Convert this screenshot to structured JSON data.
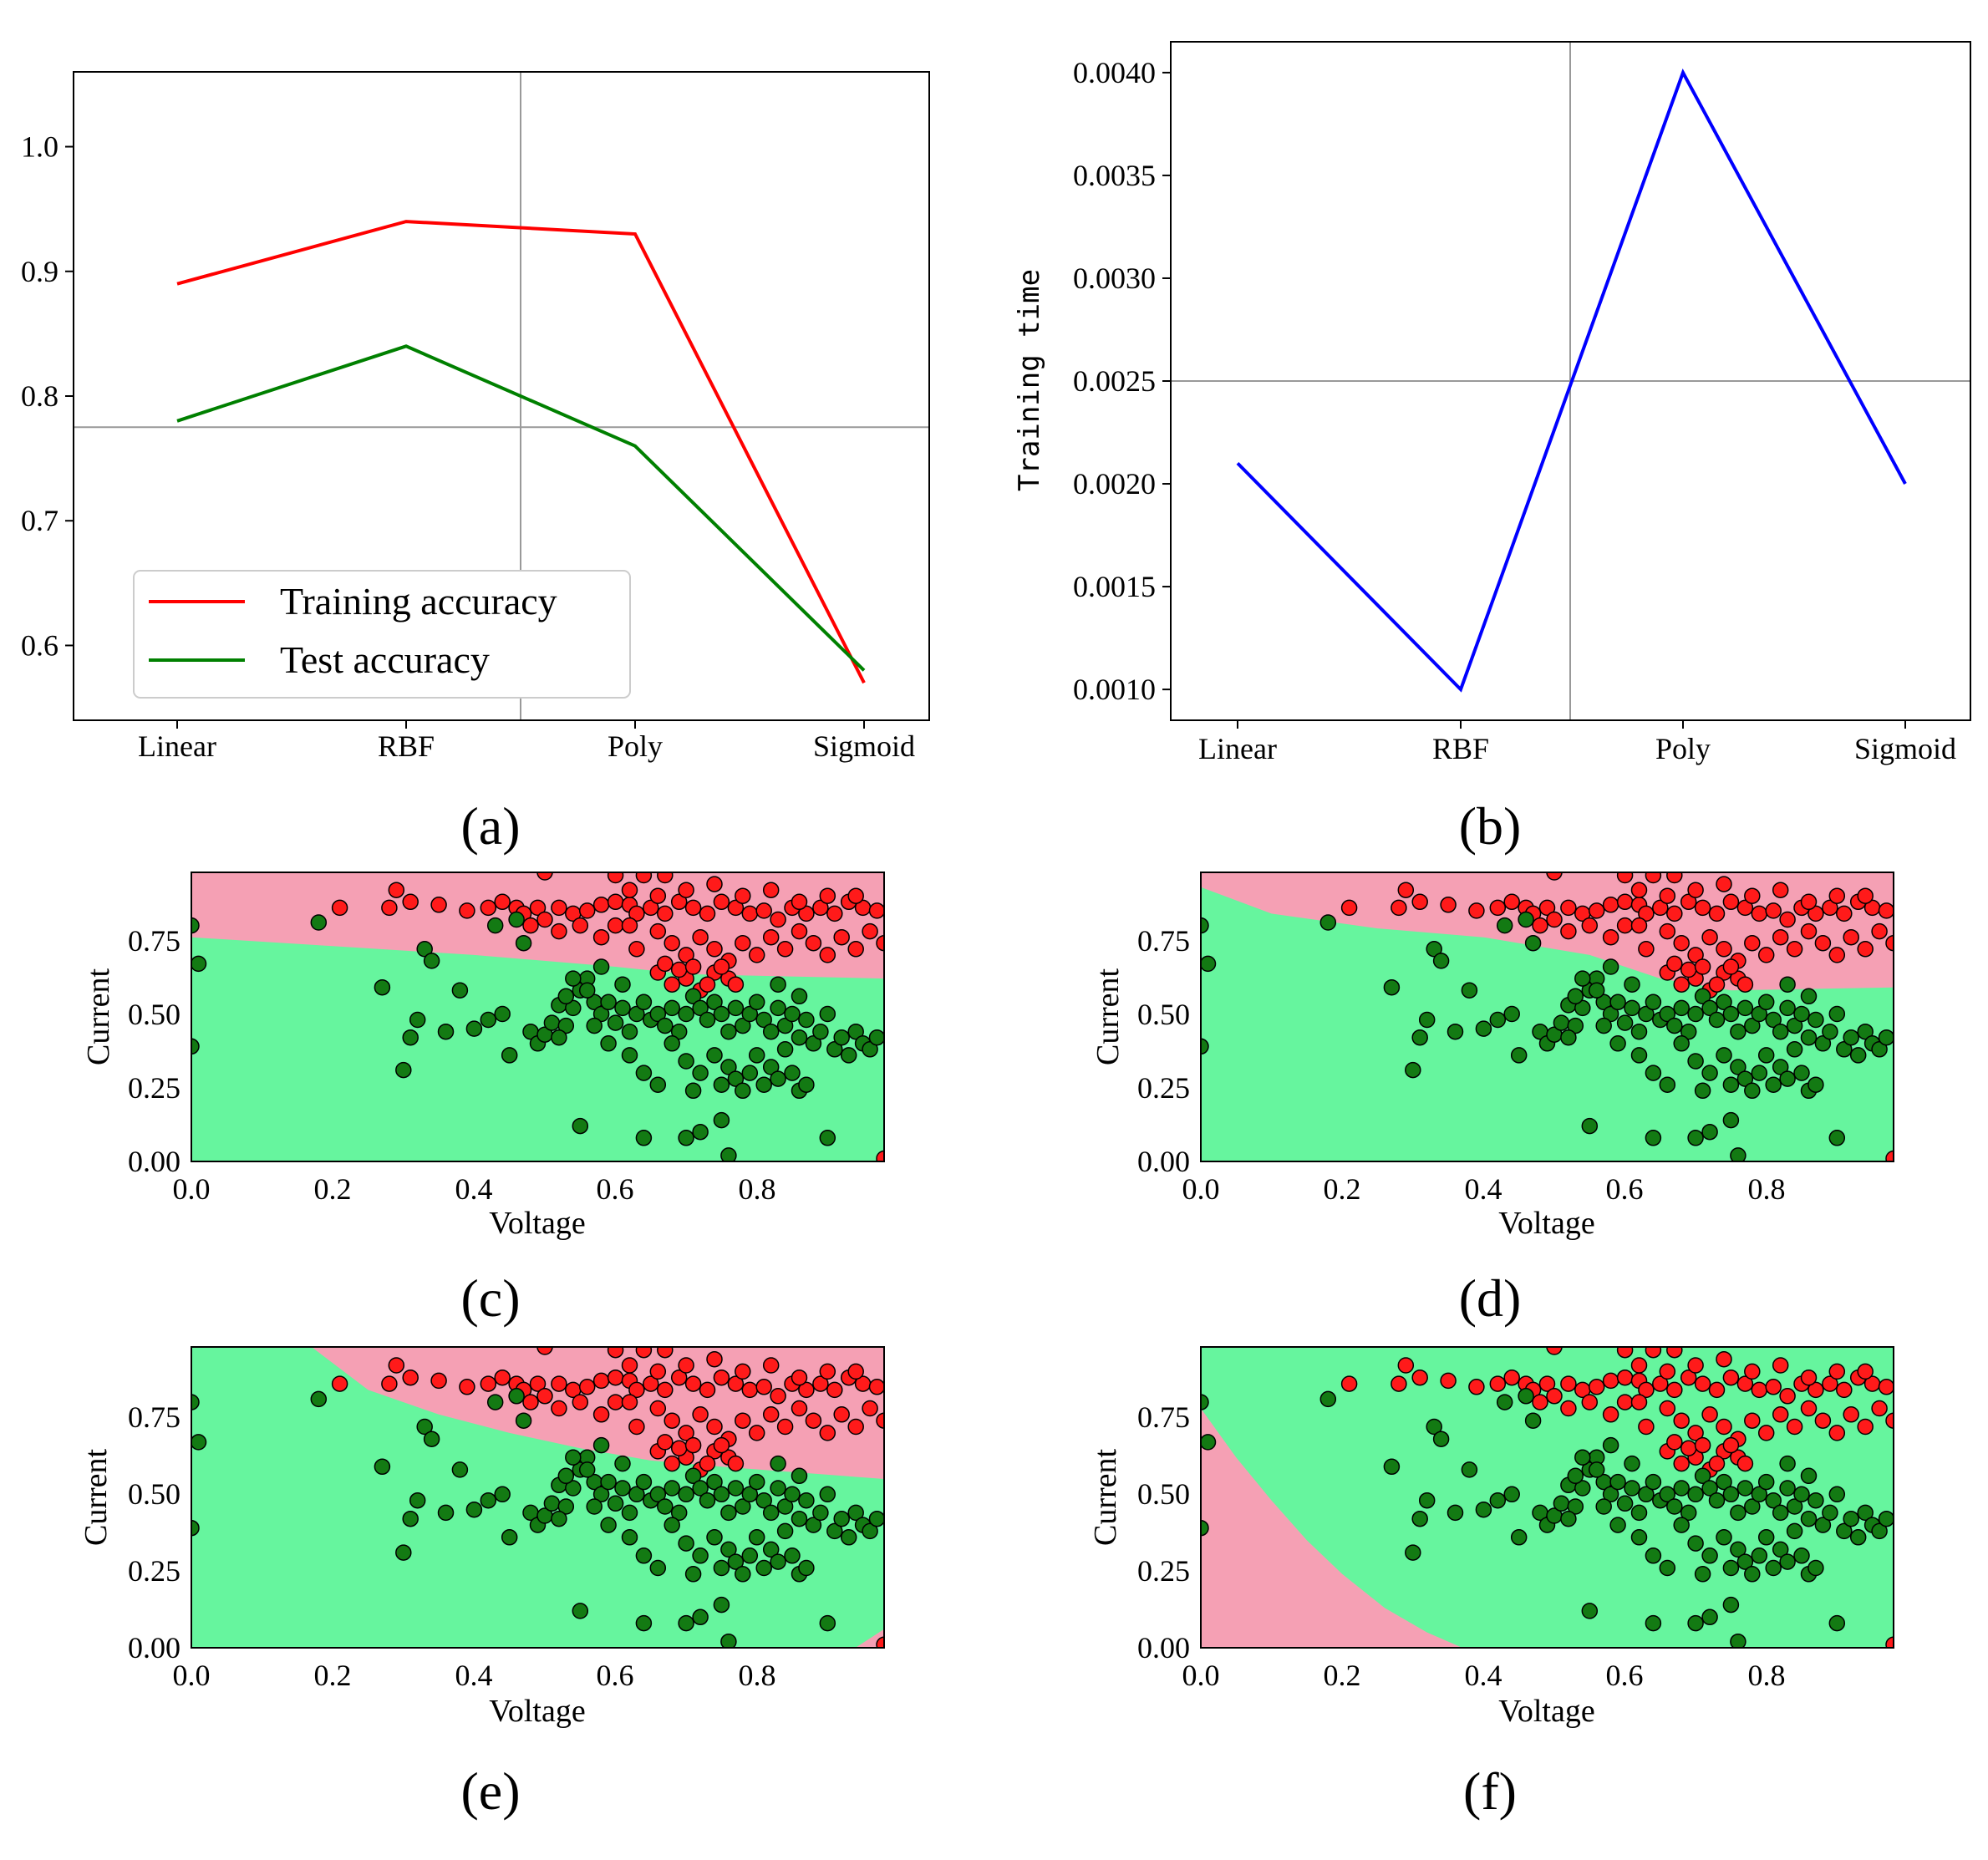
{
  "colors": {
    "train": "#ff0000",
    "test": "#008000",
    "time": "#0000ff",
    "region_red": "#f5a0b4",
    "region_green": "#66f59e",
    "point_red": "#ff1a1a",
    "point_green": "#137a13",
    "crosshair": "#999999"
  },
  "chart_data": [
    {
      "id": "a",
      "type": "line",
      "caption": "(a)",
      "categories": [
        "Linear",
        "RBF",
        "Poly",
        "Sigmoid"
      ],
      "series": [
        {
          "name": "Training accuracy",
          "values": [
            0.89,
            0.94,
            0.93,
            0.57
          ]
        },
        {
          "name": "Test accuracy",
          "values": [
            0.78,
            0.84,
            0.76,
            0.58
          ]
        }
      ],
      "yticks": [
        "1.0",
        "0.9",
        "0.8",
        "0.7",
        "0.6"
      ],
      "ylim": [
        0.54,
        1.06
      ],
      "crosshair": {
        "x": 1.5,
        "y": 0.775
      },
      "legend": "lower-left"
    },
    {
      "id": "b",
      "type": "line",
      "caption": "(b)",
      "ylabel": "Training time",
      "categories": [
        "Linear",
        "RBF",
        "Poly",
        "Sigmoid"
      ],
      "series": [
        {
          "name": "Training time",
          "values": [
            0.0021,
            0.001,
            0.004,
            0.002
          ]
        }
      ],
      "yticks": [
        "0.0040",
        "0.0035",
        "0.0030",
        "0.0025",
        "0.0020",
        "0.0015",
        "0.0010"
      ],
      "ylim": [
        0.00085,
        0.00415
      ],
      "crosshair": {
        "x": 1.5,
        "y": 0.0025
      }
    },
    {
      "id": "c",
      "type": "scatter",
      "caption": "(c)",
      "kernel": "linear",
      "xlabel": "Voltage",
      "ylabel": "Current",
      "xticks": [
        "0.0",
        "0.2",
        "0.4",
        "0.6",
        "0.8"
      ],
      "yticks": [
        "0.00",
        "0.25",
        "0.50",
        "0.75"
      ],
      "xlim": [
        0,
        0.98
      ],
      "ylim": [
        0,
        0.98
      ],
      "boundary": [
        [
          0,
          0.76
        ],
        [
          0.2,
          0.73
        ],
        [
          0.4,
          0.7
        ],
        [
          0.6,
          0.66
        ],
        [
          0.7,
          0.635
        ],
        [
          0.98,
          0.62
        ]
      ]
    },
    {
      "id": "d",
      "type": "scatter",
      "caption": "(d)",
      "kernel": "rbf",
      "xlabel": "Voltage",
      "ylabel": "Current",
      "xticks": [
        "0.0",
        "0.2",
        "0.4",
        "0.6",
        "0.8"
      ],
      "yticks": [
        "0.00",
        "0.25",
        "0.50",
        "0.75"
      ],
      "xlim": [
        0,
        0.98
      ],
      "ylim": [
        0,
        0.98
      ],
      "boundary": [
        [
          0,
          0.93
        ],
        [
          0.1,
          0.84
        ],
        [
          0.25,
          0.79
        ],
        [
          0.4,
          0.76
        ],
        [
          0.55,
          0.7
        ],
        [
          0.65,
          0.62
        ],
        [
          0.75,
          0.58
        ],
        [
          0.98,
          0.59
        ]
      ]
    },
    {
      "id": "e",
      "type": "scatter",
      "caption": "(e)",
      "kernel": "poly",
      "xlabel": "Voltage",
      "ylabel": "Current",
      "xticks": [
        "0.0",
        "0.2",
        "0.4",
        "0.6",
        "0.8"
      ],
      "yticks": [
        "0.00",
        "0.25",
        "0.50",
        "0.75"
      ],
      "xlim": [
        0,
        0.98
      ],
      "ylim": [
        0,
        0.98
      ],
      "boundary": [
        [
          0.17,
          0.98
        ],
        [
          0.25,
          0.84
        ],
        [
          0.35,
          0.76
        ],
        [
          0.45,
          0.7
        ],
        [
          0.55,
          0.65
        ],
        [
          0.65,
          0.61
        ],
        [
          0.75,
          0.59
        ],
        [
          0.98,
          0.55
        ]
      ]
    },
    {
      "id": "f",
      "type": "scatter",
      "caption": "(f)",
      "kernel": "sigmoid",
      "xlabel": "Voltage",
      "ylabel": "Current",
      "xticks": [
        "0.0",
        "0.2",
        "0.4",
        "0.6",
        "0.8"
      ],
      "yticks": [
        "0.00",
        "0.25",
        "0.50",
        "0.75"
      ],
      "xlim": [
        0,
        0.98
      ],
      "ylim": [
        0,
        0.98
      ],
      "boundary": [
        [
          0,
          0.78
        ],
        [
          0.05,
          0.62
        ],
        [
          0.1,
          0.48
        ],
        [
          0.15,
          0.35
        ],
        [
          0.2,
          0.24
        ],
        [
          0.26,
          0.13
        ],
        [
          0.32,
          0.05
        ],
        [
          0.37,
          0
        ]
      ]
    }
  ],
  "scatter_points": {
    "red": [
      [
        0.5,
        0.98
      ],
      [
        0.29,
        0.92
      ],
      [
        0.21,
        0.86
      ],
      [
        0.31,
        0.88
      ],
      [
        0.28,
        0.86
      ],
      [
        0.35,
        0.87
      ],
      [
        0.39,
        0.85
      ],
      [
        0.42,
        0.86
      ],
      [
        0.44,
        0.88
      ],
      [
        0.46,
        0.86
      ],
      [
        0.47,
        0.84
      ],
      [
        0.49,
        0.86
      ],
      [
        0.52,
        0.86
      ],
      [
        0.54,
        0.84
      ],
      [
        0.56,
        0.85
      ],
      [
        0.58,
        0.87
      ],
      [
        0.6,
        0.88
      ],
      [
        0.62,
        0.87
      ],
      [
        0.63,
        0.84
      ],
      [
        0.65,
        0.86
      ],
      [
        0.67,
        0.84
      ],
      [
        0.69,
        0.88
      ],
      [
        0.71,
        0.86
      ],
      [
        0.73,
        0.84
      ],
      [
        0.75,
        0.88
      ],
      [
        0.77,
        0.86
      ],
      [
        0.79,
        0.84
      ],
      [
        0.81,
        0.85
      ],
      [
        0.83,
        0.82
      ],
      [
        0.85,
        0.86
      ],
      [
        0.87,
        0.84
      ],
      [
        0.89,
        0.86
      ],
      [
        0.91,
        0.84
      ],
      [
        0.93,
        0.88
      ],
      [
        0.95,
        0.86
      ],
      [
        0.97,
        0.85
      ],
      [
        0.6,
        0.97
      ],
      [
        0.64,
        0.97
      ],
      [
        0.67,
        0.97
      ],
      [
        0.62,
        0.92
      ],
      [
        0.66,
        0.9
      ],
      [
        0.7,
        0.92
      ],
      [
        0.74,
        0.94
      ],
      [
        0.78,
        0.9
      ],
      [
        0.82,
        0.92
      ],
      [
        0.86,
        0.88
      ],
      [
        0.9,
        0.9
      ],
      [
        0.94,
        0.9
      ],
      [
        0.66,
        0.78
      ],
      [
        0.68,
        0.74
      ],
      [
        0.7,
        0.7
      ],
      [
        0.72,
        0.76
      ],
      [
        0.74,
        0.72
      ],
      [
        0.76,
        0.68
      ],
      [
        0.78,
        0.74
      ],
      [
        0.8,
        0.7
      ],
      [
        0.82,
        0.76
      ],
      [
        0.84,
        0.72
      ],
      [
        0.86,
        0.78
      ],
      [
        0.88,
        0.74
      ],
      [
        0.9,
        0.7
      ],
      [
        0.92,
        0.76
      ],
      [
        0.94,
        0.72
      ],
      [
        0.96,
        0.78
      ],
      [
        0.98,
        0.74
      ],
      [
        0.66,
        0.64
      ],
      [
        0.68,
        0.6
      ],
      [
        0.7,
        0.62
      ],
      [
        0.72,
        0.58
      ],
      [
        0.74,
        0.64
      ],
      [
        0.76,
        0.62
      ],
      [
        0.67,
        0.67
      ],
      [
        0.69,
        0.65
      ],
      [
        0.71,
        0.66
      ],
      [
        0.73,
        0.6
      ],
      [
        0.75,
        0.66
      ],
      [
        0.77,
        0.6
      ],
      [
        0.63,
        0.72
      ],
      [
        0.6,
        0.8
      ],
      [
        0.58,
        0.76
      ],
      [
        0.62,
        0.8
      ],
      [
        0.55,
        0.8
      ],
      [
        0.52,
        0.78
      ],
      [
        0.5,
        0.82
      ],
      [
        0.48,
        0.8
      ],
      [
        0.98,
        0.01
      ]
    ],
    "green": [
      [
        0.0,
        0.8
      ],
      [
        0.01,
        0.67
      ],
      [
        0.0,
        0.39
      ],
      [
        0.18,
        0.81
      ],
      [
        0.27,
        0.59
      ],
      [
        0.3,
        0.31
      ],
      [
        0.31,
        0.42
      ],
      [
        0.32,
        0.48
      ],
      [
        0.33,
        0.72
      ],
      [
        0.34,
        0.68
      ],
      [
        0.36,
        0.44
      ],
      [
        0.38,
        0.58
      ],
      [
        0.4,
        0.45
      ],
      [
        0.42,
        0.48
      ],
      [
        0.43,
        0.8
      ],
      [
        0.44,
        0.5
      ],
      [
        0.45,
        0.36
      ],
      [
        0.46,
        0.82
      ],
      [
        0.47,
        0.74
      ],
      [
        0.48,
        0.44
      ],
      [
        0.49,
        0.4
      ],
      [
        0.5,
        0.43
      ],
      [
        0.51,
        0.47
      ],
      [
        0.52,
        0.53
      ],
      [
        0.53,
        0.46
      ],
      [
        0.54,
        0.52
      ],
      [
        0.55,
        0.58
      ],
      [
        0.56,
        0.62
      ],
      [
        0.57,
        0.54
      ],
      [
        0.58,
        0.5
      ],
      [
        0.59,
        0.54
      ],
      [
        0.6,
        0.47
      ],
      [
        0.61,
        0.52
      ],
      [
        0.62,
        0.44
      ],
      [
        0.63,
        0.5
      ],
      [
        0.64,
        0.54
      ],
      [
        0.65,
        0.48
      ],
      [
        0.66,
        0.5
      ],
      [
        0.67,
        0.46
      ],
      [
        0.68,
        0.52
      ],
      [
        0.69,
        0.44
      ],
      [
        0.7,
        0.5
      ],
      [
        0.71,
        0.56
      ],
      [
        0.72,
        0.52
      ],
      [
        0.73,
        0.48
      ],
      [
        0.74,
        0.54
      ],
      [
        0.75,
        0.5
      ],
      [
        0.76,
        0.44
      ],
      [
        0.77,
        0.52
      ],
      [
        0.78,
        0.46
      ],
      [
        0.79,
        0.5
      ],
      [
        0.8,
        0.54
      ],
      [
        0.81,
        0.48
      ],
      [
        0.82,
        0.44
      ],
      [
        0.83,
        0.52
      ],
      [
        0.84,
        0.46
      ],
      [
        0.85,
        0.5
      ],
      [
        0.86,
        0.42
      ],
      [
        0.87,
        0.48
      ],
      [
        0.88,
        0.4
      ],
      [
        0.89,
        0.44
      ],
      [
        0.9,
        0.5
      ],
      [
        0.91,
        0.38
      ],
      [
        0.92,
        0.42
      ],
      [
        0.93,
        0.36
      ],
      [
        0.94,
        0.44
      ],
      [
        0.95,
        0.4
      ],
      [
        0.96,
        0.38
      ],
      [
        0.97,
        0.42
      ],
      [
        0.62,
        0.36
      ],
      [
        0.64,
        0.3
      ],
      [
        0.66,
        0.26
      ],
      [
        0.68,
        0.4
      ],
      [
        0.7,
        0.34
      ],
      [
        0.71,
        0.24
      ],
      [
        0.72,
        0.3
      ],
      [
        0.74,
        0.36
      ],
      [
        0.75,
        0.26
      ],
      [
        0.76,
        0.32
      ],
      [
        0.77,
        0.28
      ],
      [
        0.78,
        0.24
      ],
      [
        0.79,
        0.3
      ],
      [
        0.8,
        0.36
      ],
      [
        0.81,
        0.26
      ],
      [
        0.82,
        0.32
      ],
      [
        0.83,
        0.28
      ],
      [
        0.84,
        0.38
      ],
      [
        0.85,
        0.3
      ],
      [
        0.86,
        0.24
      ],
      [
        0.87,
        0.26
      ],
      [
        0.55,
        0.12
      ],
      [
        0.64,
        0.08
      ],
      [
        0.7,
        0.08
      ],
      [
        0.72,
        0.1
      ],
      [
        0.75,
        0.14
      ],
      [
        0.76,
        0.02
      ],
      [
        0.9,
        0.08
      ],
      [
        0.83,
        0.6
      ],
      [
        0.86,
        0.56
      ],
      [
        0.58,
        0.66
      ],
      [
        0.56,
        0.58
      ],
      [
        0.54,
        0.62
      ],
      [
        0.53,
        0.56
      ],
      [
        0.52,
        0.42
      ],
      [
        0.57,
        0.46
      ],
      [
        0.59,
        0.4
      ],
      [
        0.61,
        0.6
      ]
    ]
  }
}
